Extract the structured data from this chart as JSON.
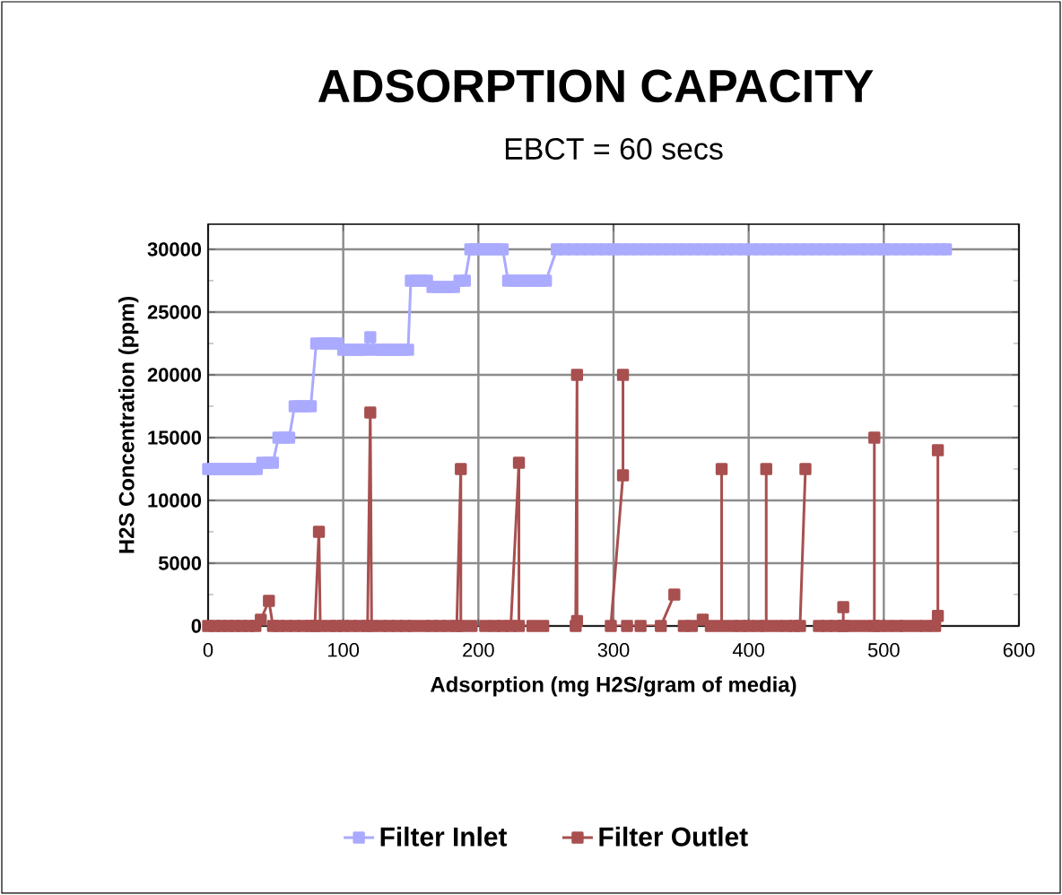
{
  "chart_data": {
    "type": "line",
    "title": "ADSORPTION CAPACITY",
    "subtitle": "EBCT = 60 secs",
    "xlabel": "Adsorption (mg H2S/gram of media)",
    "ylabel": "H2S Concentration (ppm)",
    "xlim": [
      0,
      600
    ],
    "xticks": [
      0,
      100,
      200,
      300,
      400,
      500,
      600
    ],
    "ylim": [
      0,
      32000
    ],
    "yticks": [
      0,
      5000,
      10000,
      15000,
      20000,
      25000,
      30000
    ],
    "grid": true,
    "legend": "bottom",
    "marker": "square",
    "line_style": "solid",
    "series": [
      {
        "name": "Filter Inlet",
        "color": "#aaaaff",
        "x": [
          0,
          4,
          8,
          12,
          16,
          20,
          24,
          28,
          32,
          36,
          40,
          44,
          48,
          52,
          56,
          60,
          64,
          68,
          72,
          76,
          80,
          84,
          88,
          92,
          96,
          100,
          104,
          108,
          112,
          116,
          120,
          124,
          128,
          132,
          136,
          140,
          144,
          148,
          150,
          154,
          158,
          162,
          166,
          170,
          174,
          178,
          182,
          186,
          190,
          194,
          198,
          202,
          206,
          210,
          214,
          218,
          222,
          226,
          230,
          234,
          238,
          242,
          246,
          250,
          258,
          264,
          270,
          276,
          282,
          288,
          294,
          300,
          306,
          312,
          318,
          324,
          330,
          336,
          342,
          348,
          354,
          360,
          366,
          372,
          378,
          384,
          390,
          396,
          402,
          408,
          414,
          420,
          426,
          432,
          438,
          444,
          450,
          456,
          462,
          468,
          474,
          478,
          482,
          488,
          494,
          500,
          506,
          512,
          518,
          524,
          530,
          536,
          542,
          546
        ],
        "values": [
          12500,
          12500,
          12500,
          12500,
          12500,
          12500,
          12500,
          12500,
          12500,
          12500,
          13000,
          13000,
          13000,
          15000,
          15000,
          15000,
          17500,
          17500,
          17500,
          17500,
          22500,
          22500,
          22500,
          22500,
          22500,
          22000,
          22000,
          22000,
          22000,
          22000,
          23000,
          22000,
          22000,
          22000,
          22000,
          22000,
          22000,
          22000,
          27500,
          27500,
          27500,
          27500,
          27000,
          27000,
          27000,
          27000,
          27000,
          27500,
          27500,
          30000,
          30000,
          30000,
          30000,
          30000,
          30000,
          30000,
          27500,
          27500,
          27500,
          27500,
          27500,
          27500,
          27500,
          27500,
          30000,
          30000,
          30000,
          30000,
          30000,
          30000,
          30000,
          30000,
          30000,
          30000,
          30000,
          30000,
          30000,
          30000,
          30000,
          30000,
          30000,
          30000,
          30000,
          30000,
          30000,
          30000,
          30000,
          30000,
          30000,
          30000,
          30000,
          30000,
          30000,
          30000,
          30000,
          30000,
          30000,
          30000,
          30000,
          30000,
          30000,
          null,
          30000,
          30000,
          30000,
          30000,
          30000,
          30000,
          30000,
          30000,
          30000,
          30000,
          30000,
          30000
        ]
      },
      {
        "name": "Filter Outlet",
        "color": "#a84f4f",
        "x": [
          0,
          5,
          10,
          15,
          20,
          25,
          30,
          35,
          39,
          45,
          48,
          52,
          58,
          64,
          70,
          76,
          79,
          82,
          83,
          90,
          95,
          100,
          106,
          112,
          118,
          120,
          121,
          128,
          134,
          140,
          146,
          152,
          160,
          166,
          172,
          178,
          184,
          187,
          187,
          195,
          205,
          212,
          218,
          224,
          230,
          230,
          240,
          248,
          260,
          272,
          273,
          273,
          285,
          307,
          307,
          298,
          310,
          320,
          335,
          345,
          348,
          352,
          358,
          366,
          372,
          380,
          380,
          384,
          388,
          394,
          400,
          407,
          413,
          413,
          417,
          421,
          428,
          434,
          438,
          442,
          446,
          452,
          458,
          464,
          470,
          470,
          470,
          478,
          486,
          493,
          493,
          495,
          496,
          503,
          510,
          516,
          524,
          531,
          538,
          540,
          540
        ],
        "values": [
          0,
          0,
          0,
          0,
          0,
          0,
          0,
          0,
          500,
          2000,
          0,
          0,
          0,
          0,
          0,
          0,
          0,
          7500,
          0,
          0,
          0,
          0,
          0,
          0,
          0,
          17000,
          0,
          0,
          0,
          0,
          0,
          0,
          0,
          0,
          0,
          0,
          0,
          12500,
          0,
          0,
          0,
          0,
          0,
          0,
          13000,
          0,
          0,
          0,
          null,
          0,
          20000,
          400,
          null,
          20000,
          12000,
          0,
          0,
          0,
          0,
          2500,
          null,
          0,
          0,
          500,
          0,
          0,
          12500,
          null,
          0,
          0,
          0,
          0,
          0,
          12500,
          null,
          0,
          0,
          0,
          0,
          12500,
          null,
          0,
          0,
          0,
          0,
          1500,
          0,
          0,
          0,
          0,
          15000,
          null,
          0,
          0,
          0,
          0,
          0,
          0,
          0,
          800,
          14000
        ]
      }
    ]
  }
}
